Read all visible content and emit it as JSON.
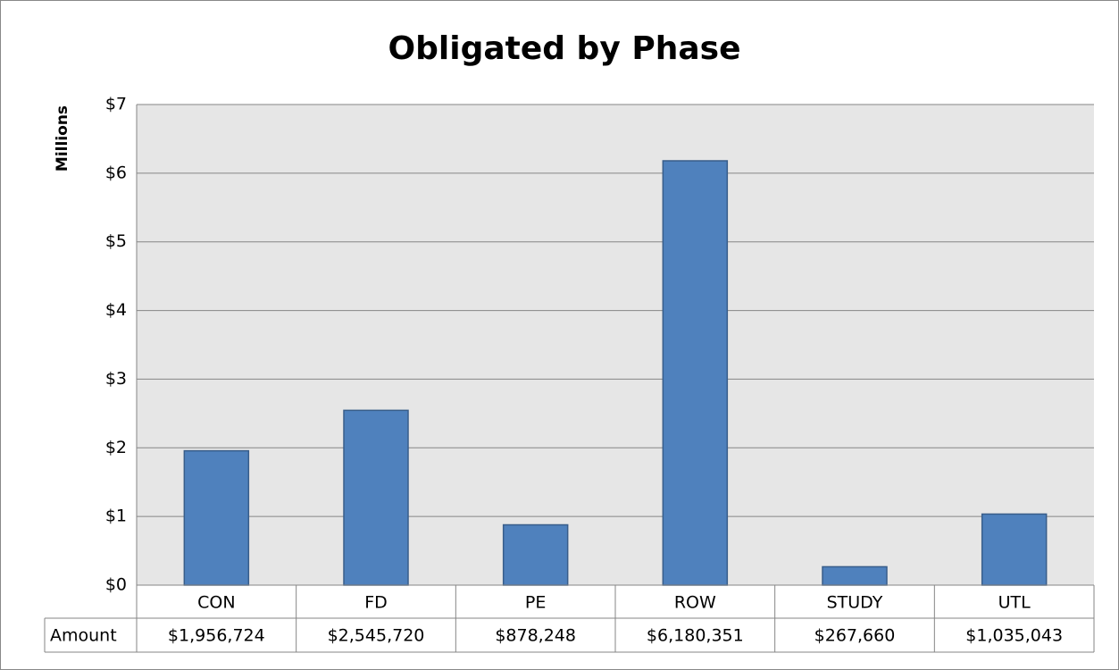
{
  "chart_data": {
    "type": "bar",
    "title": "Obligated by Phase",
    "y_label": "Millions",
    "categories": [
      "CON",
      "FD",
      "PE",
      "ROW",
      "STUDY",
      "UTL"
    ],
    "values": [
      1.956724,
      2.54572,
      0.878248,
      6.180351,
      0.26766,
      1.035043
    ],
    "value_labels": [
      "$1,956,724",
      "$2,545,720",
      "$878,248",
      "$6,180,351",
      "$267,660",
      "$1,035,043"
    ],
    "table_row_label": "Amount",
    "color": "#4f81bd",
    "ylim": [
      0,
      7
    ],
    "yticks": [
      {
        "value": 0,
        "label": "$0"
      },
      {
        "value": 1,
        "label": "$1"
      },
      {
        "value": 2,
        "label": "$2"
      },
      {
        "value": 3,
        "label": "$3"
      },
      {
        "value": 4,
        "label": "$4"
      },
      {
        "value": 5,
        "label": "$5"
      },
      {
        "value": 6,
        "label": "$6"
      },
      {
        "value": 7,
        "label": "$7"
      }
    ],
    "grid": true
  }
}
